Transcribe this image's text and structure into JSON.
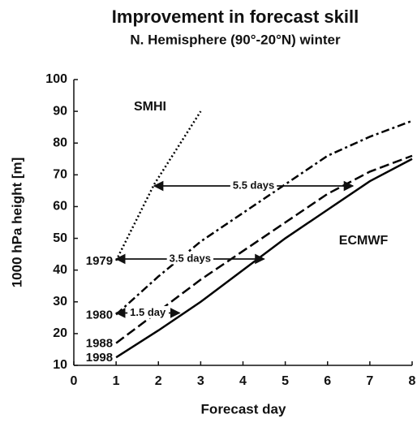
{
  "chart_data": {
    "type": "line",
    "title": "Improvement in forecast skill",
    "subtitle": "N. Hemisphere (90°-20°N) winter",
    "x_label": "Forecast day",
    "y_label": "1000 hPa height [m]",
    "xlim": [
      0,
      8
    ],
    "xticks": [
      0,
      1,
      2,
      3,
      4,
      5,
      6,
      7,
      8
    ],
    "ylim": [
      10,
      100
    ],
    "yticks": [
      10,
      20,
      30,
      40,
      50,
      60,
      70,
      80,
      90,
      100
    ],
    "series": [
      {
        "name": "1979",
        "color": "#000000",
        "dash": "dotted",
        "x": [
          1,
          1.9,
          3
        ],
        "values": [
          43,
          67,
          90
        ]
      },
      {
        "name": "1980",
        "color": "#000000",
        "dash": "dashdot",
        "x": [
          1,
          2,
          3,
          4,
          5,
          6,
          7,
          8
        ],
        "values": [
          26,
          38,
          49,
          58,
          67,
          76,
          82,
          87
        ]
      },
      {
        "name": "1988",
        "color": "#000000",
        "dash": "dashed",
        "x": [
          1,
          2,
          3,
          4,
          5,
          6,
          7,
          8
        ],
        "values": [
          17,
          27,
          37,
          46,
          55,
          64,
          71,
          76
        ]
      },
      {
        "name": "1998",
        "color": "#000000",
        "dash": "solid",
        "x": [
          1,
          2,
          3,
          4,
          5,
          6,
          7,
          8
        ],
        "values": [
          12.5,
          21,
          30,
          40,
          50,
          59,
          68,
          75
        ]
      }
    ],
    "annotations": [
      "SMHI",
      "ECMWF"
    ],
    "arrows": [
      {
        "label": "5.5 days",
        "x": [
          1.9,
          6.6
        ],
        "y": 66.5
      },
      {
        "label": "3.5 days",
        "x": [
          1,
          4.5
        ],
        "y": 43.5
      },
      {
        "label": "1.5 day",
        "x": [
          1,
          2.5
        ],
        "y": 26.5
      }
    ]
  }
}
